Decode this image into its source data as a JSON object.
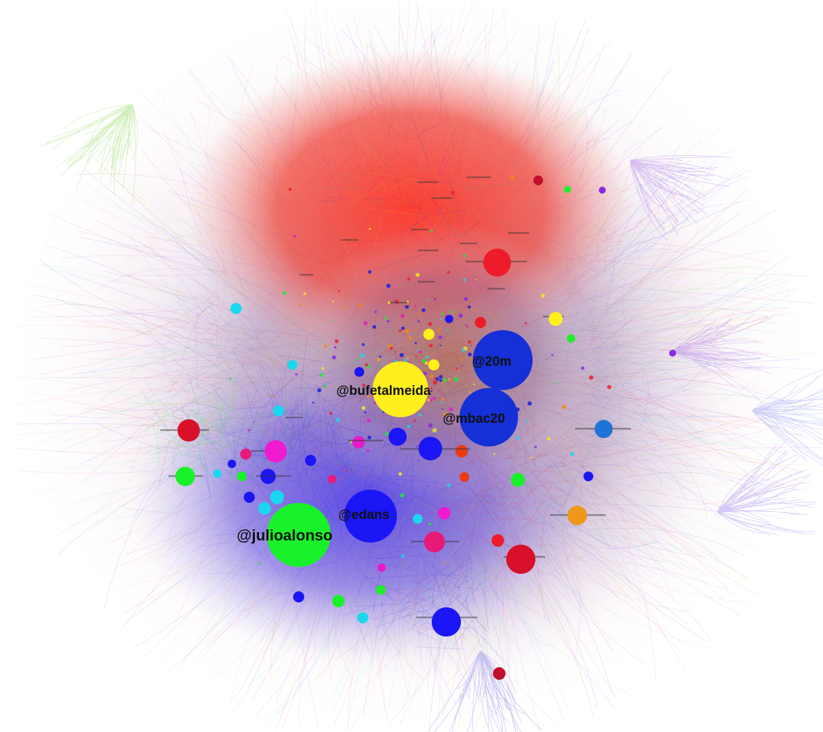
{
  "graph": {
    "labeled_nodes": [
      {
        "id": "julioalonso",
        "label": "@julioalonso",
        "color": "#19f22a"
      },
      {
        "id": "edans",
        "label": "@edans",
        "color": "#1a16f5"
      },
      {
        "id": "bufetalmeida",
        "label": "@bufetalmeida",
        "color": "#ffef1c"
      },
      {
        "id": "20m",
        "label": "@20m",
        "color": "#1530d6"
      },
      {
        "id": "mbac20",
        "label": "@mbac20",
        "color": "#1530d6"
      }
    ],
    "community_colors": [
      "#e8222e",
      "#1b1de0",
      "#22e53a",
      "#f5e51a",
      "#e81ac8",
      "#1ad7f0",
      "#8a2be2",
      "#f08a10"
    ]
  }
}
